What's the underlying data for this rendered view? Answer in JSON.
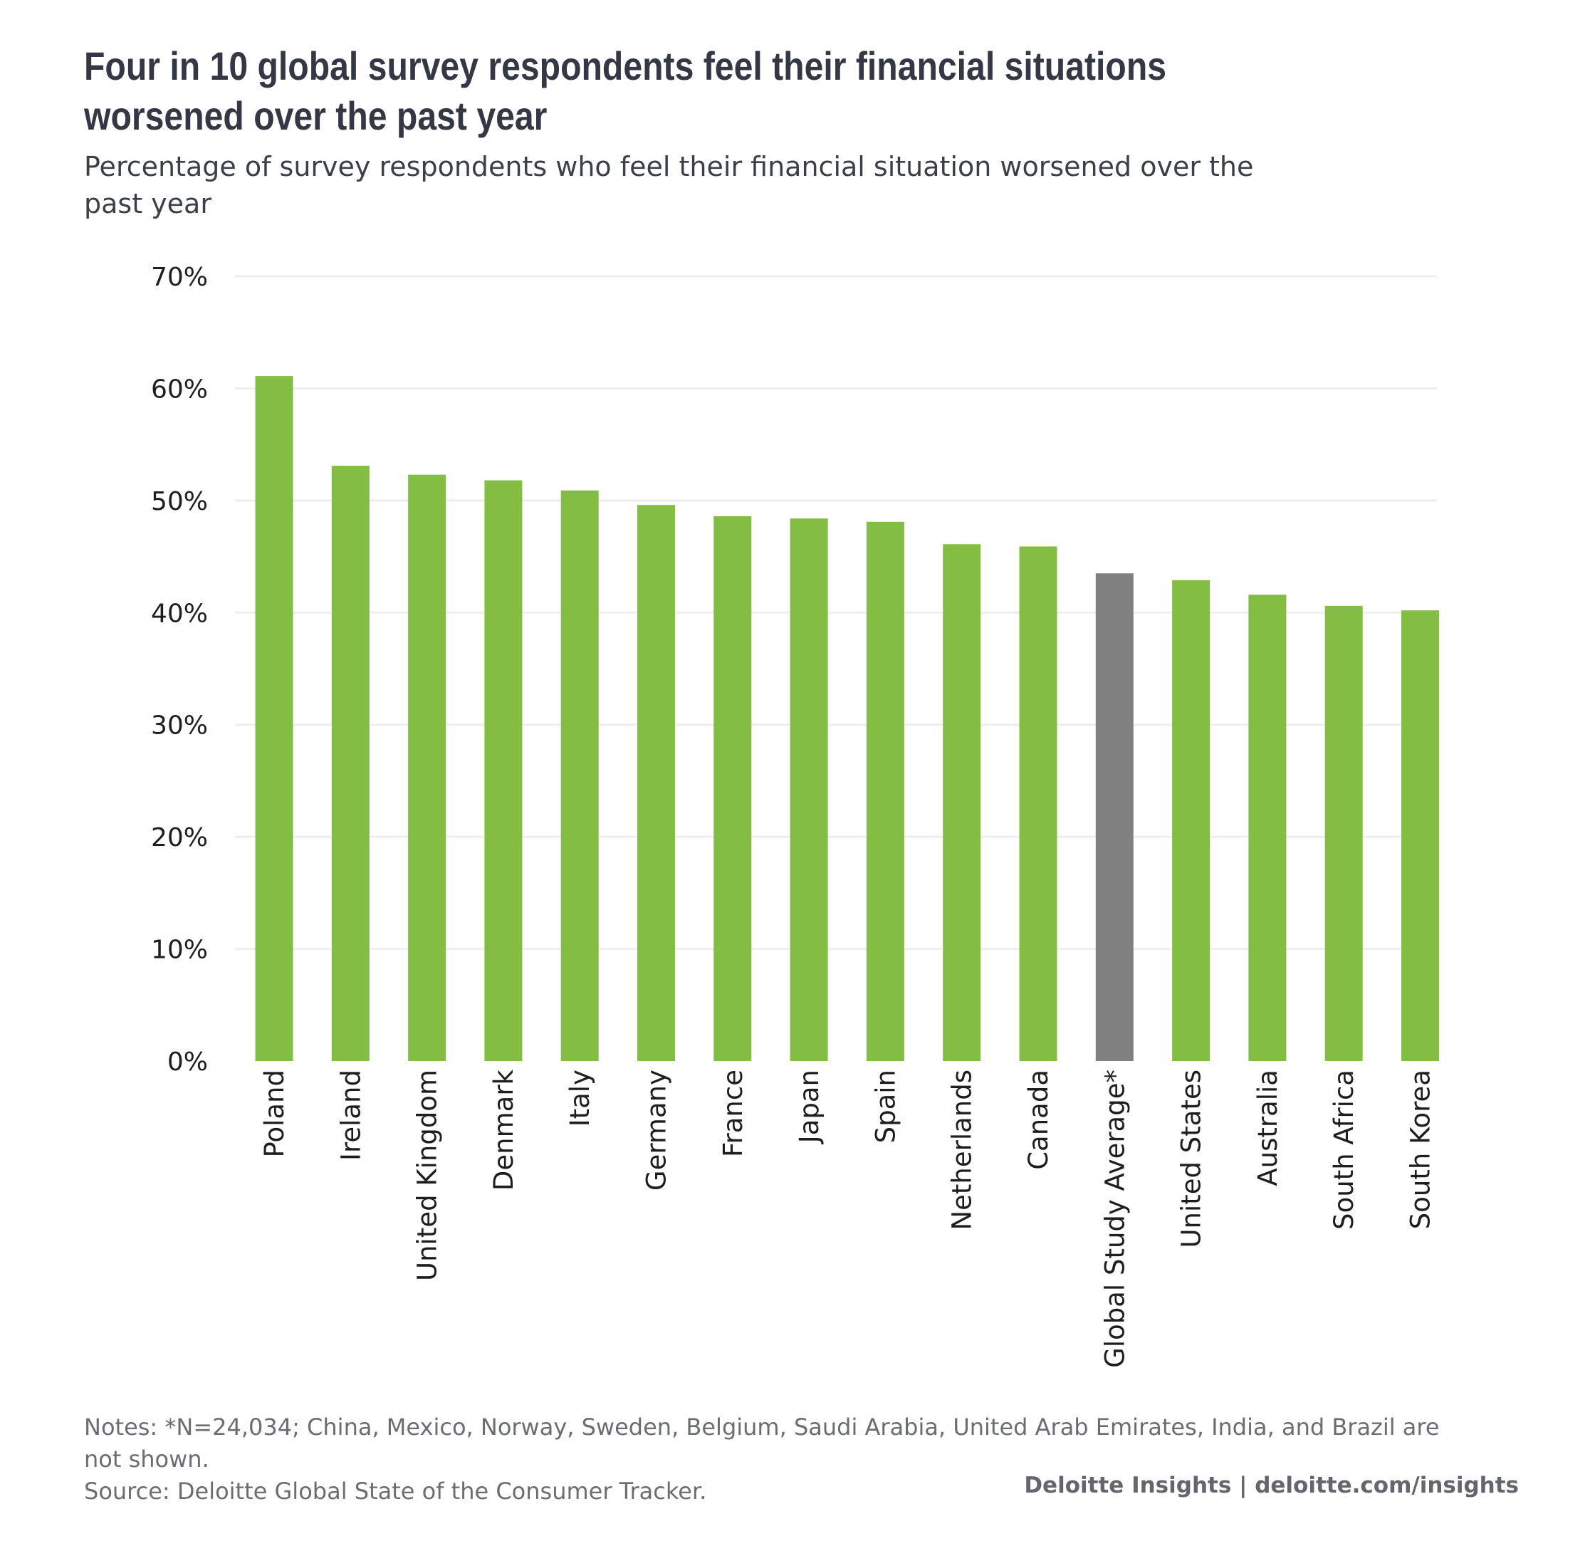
{
  "header": {
    "title": "Four in 10 global survey respondents feel their financial situations worsened over the past year",
    "subtitle": "Percentage of survey respondents who feel their financial situation worsened over the past year"
  },
  "footer": {
    "notes": "Notes: *N=24,034; China, Mexico, Norway, Sweden, Belgium, Saudi Arabia, United Arab Emirates, India, and Brazil are not shown.",
    "source": "Source: Deloitte Global State of the Consumer Tracker.",
    "brand": "Deloitte Insights | deloitte.com/insights"
  },
  "colors": {
    "bar": "#84bd43",
    "highlight": "#808080",
    "grid": "#eeeeee"
  },
  "chart_data": {
    "type": "bar",
    "title": "Four in 10 global survey respondents feel their financial situations worsened over the past year",
    "subtitle": "Percentage of survey respondents who feel their financial situation worsened over the past year",
    "xlabel": "",
    "ylabel": "",
    "categories": [
      "Poland",
      "Ireland",
      "United Kingdom",
      "Denmark",
      "Italy",
      "Germany",
      "France",
      "Japan",
      "Spain",
      "Netherlands",
      "Canada",
      "Global Study Average*",
      "United States",
      "Australia",
      "South Africa",
      "South Korea"
    ],
    "values": [
      61.1,
      53.1,
      52.3,
      51.8,
      50.9,
      49.6,
      48.6,
      48.4,
      48.1,
      46.1,
      45.9,
      43.5,
      42.9,
      41.6,
      40.6,
      40.2
    ],
    "highlight_category": "Global Study Average*",
    "ylim": [
      0,
      70
    ],
    "yticks": [
      0,
      10,
      20,
      30,
      40,
      50,
      60,
      70
    ],
    "ytick_labels": [
      "0%",
      "10%",
      "20%",
      "30%",
      "40%",
      "50%",
      "60%",
      "70%"
    ],
    "grid": true,
    "legend": "none"
  }
}
